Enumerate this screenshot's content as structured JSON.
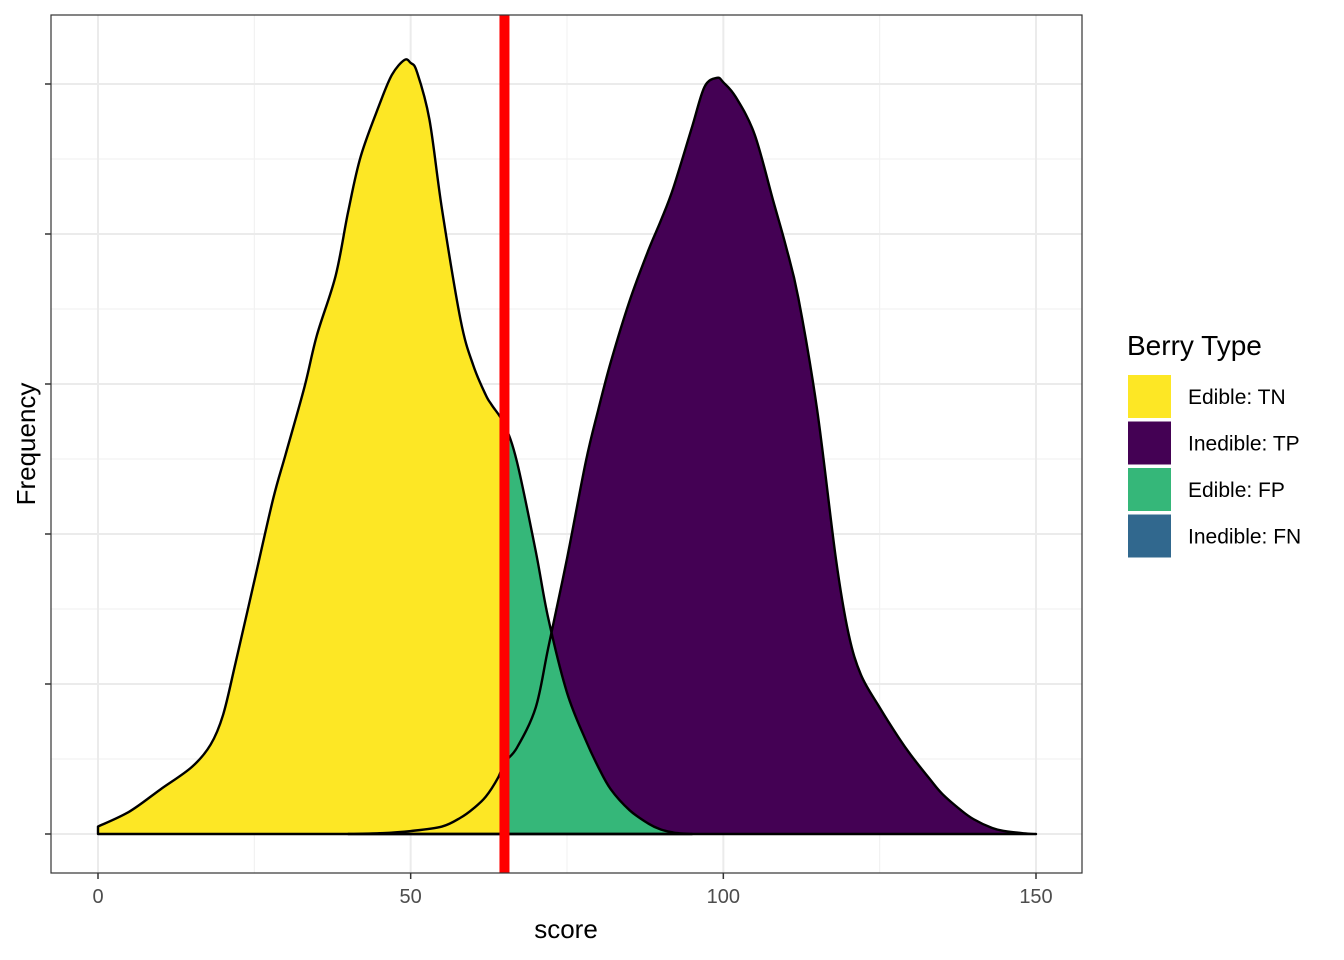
{
  "chart_data": {
    "type": "area",
    "xlabel": "score",
    "ylabel": "Frequency",
    "xlim": [
      -3,
      150
    ],
    "ylim": [
      -0.0025,
      0.05
    ],
    "x_ticks": [
      0,
      50,
      100,
      150
    ],
    "x_tick_labels": [
      "0",
      "50",
      "100",
      "150"
    ],
    "y_tick_labels_visible": false,
    "grid": true,
    "threshold": {
      "x": 65,
      "color": "#ff0000"
    },
    "legend": {
      "title": "Berry Type",
      "position": "right",
      "entries": [
        {
          "label": "Edible: TN",
          "color": "#FDE725"
        },
        {
          "label": "Inedible: TP",
          "color": "#440154"
        },
        {
          "label": "Edible: FP",
          "color": "#35B779"
        },
        {
          "label": "Inedible: FN",
          "color": "#31688E"
        }
      ]
    },
    "series": [
      {
        "name": "Edible",
        "x": [
          0,
          5,
          10,
          15,
          18,
          20,
          22,
          25,
          28,
          30,
          33,
          35,
          38,
          40,
          42,
          45,
          47,
          49,
          50,
          51,
          53,
          55,
          58,
          60,
          62,
          63,
          65,
          67,
          70,
          72,
          75,
          78,
          80,
          82,
          85,
          88,
          90,
          92,
          93,
          95
        ],
        "y": [
          0.0005,
          0.0015,
          0.003,
          0.0045,
          0.006,
          0.008,
          0.0115,
          0.017,
          0.0225,
          0.0255,
          0.03,
          0.0335,
          0.0375,
          0.0418,
          0.0455,
          0.049,
          0.051,
          0.052,
          0.0518,
          0.0512,
          0.048,
          0.042,
          0.0345,
          0.0315,
          0.0295,
          0.0288,
          0.0275,
          0.025,
          0.019,
          0.0145,
          0.0095,
          0.0063,
          0.0045,
          0.003,
          0.0016,
          0.0007,
          0.0003,
          0.0001,
          5e-05,
          0.0
        ]
      },
      {
        "name": "Inedible",
        "x": [
          40,
          45,
          50,
          55,
          58,
          60,
          62,
          64,
          65,
          67,
          70,
          72,
          75,
          78,
          80,
          82,
          85,
          88,
          90,
          92,
          95,
          97,
          99,
          100,
          102,
          105,
          108,
          110,
          112,
          115,
          118,
          120,
          122,
          125,
          128,
          130,
          133,
          135,
          138,
          140,
          143,
          145,
          148,
          150
        ],
        "y": [
          0.0,
          5e-05,
          0.0002,
          0.0005,
          0.0011,
          0.0017,
          0.0025,
          0.0038,
          0.0048,
          0.0058,
          0.0085,
          0.0125,
          0.0185,
          0.025,
          0.0285,
          0.0317,
          0.0358,
          0.0392,
          0.0412,
          0.0434,
          0.0475,
          0.0502,
          0.0508,
          0.0505,
          0.0495,
          0.047,
          0.0425,
          0.0395,
          0.036,
          0.0285,
          0.0185,
          0.0135,
          0.0107,
          0.0085,
          0.0065,
          0.0053,
          0.0037,
          0.0027,
          0.0016,
          0.001,
          0.0004,
          0.0002,
          5e-05,
          0.0
        ]
      }
    ]
  }
}
